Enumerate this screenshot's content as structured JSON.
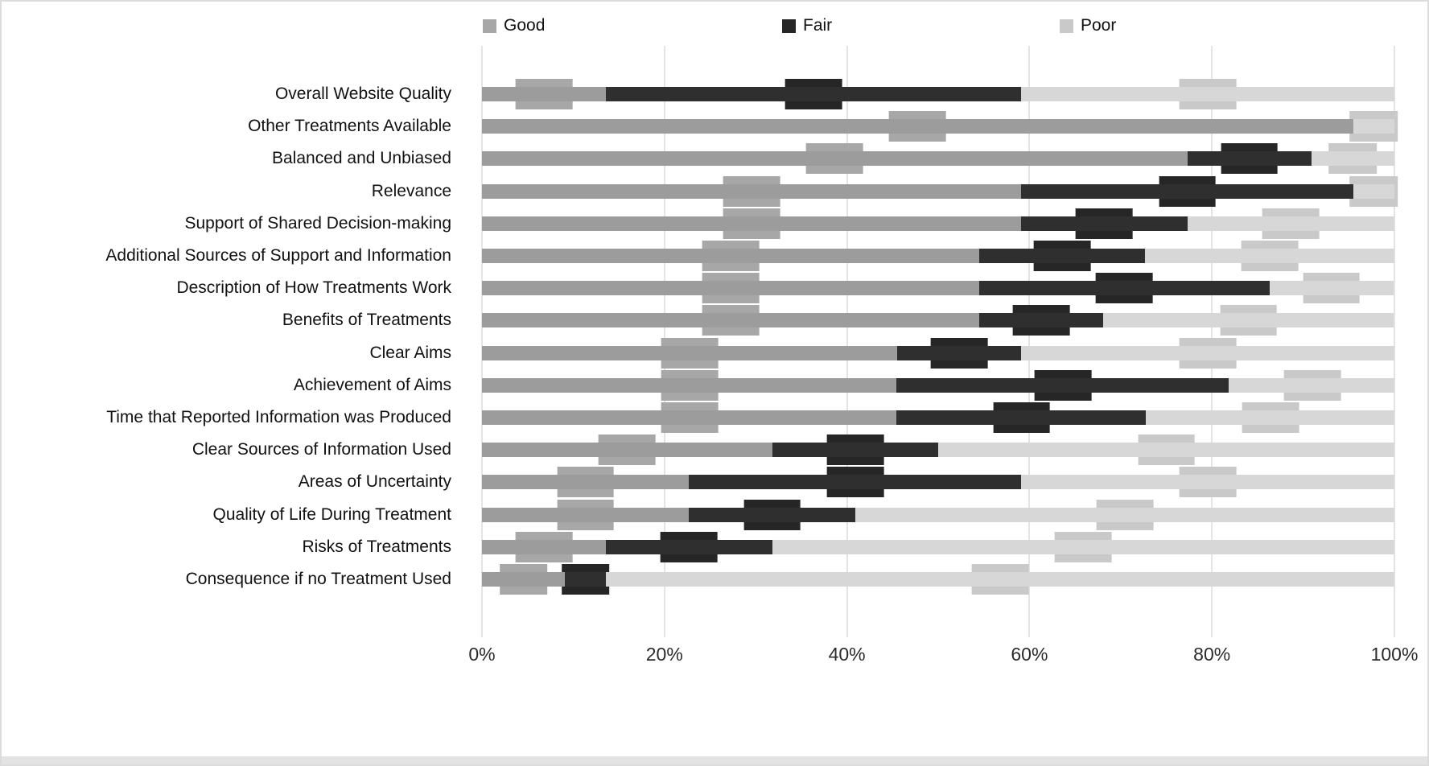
{
  "legend": {
    "items": [
      {
        "label": "Good",
        "color": "#a7a7a7"
      },
      {
        "label": "Fair",
        "color": "#262626"
      },
      {
        "label": "Poor",
        "color": "#c9c9c9"
      }
    ]
  },
  "chart_data": {
    "type": "bar",
    "orientation": "horizontal",
    "stacked": true,
    "unit": "%",
    "title": "",
    "xlabel": "",
    "ylabel": "",
    "xlim": [
      0,
      100
    ],
    "x_ticks": [
      "0%",
      "20%",
      "40%",
      "60%",
      "80%",
      "100%"
    ],
    "grid": "vertical",
    "legend_position": "top",
    "categories": [
      "Overall Website Quality",
      "Other Treatments Available",
      "Balanced and Unbiased",
      "Relevance",
      "Support of Shared Decision-making",
      "Additional Sources of Support and Information",
      "Description of How Treatments Work",
      "Benefits of Treatments",
      "Clear Aims",
      "Achievement of Aims",
      "Time that Reported Information was Produced",
      "Clear Sources of Information Used",
      "Areas of Uncertainty",
      "Quality of Life During Treatment",
      "Risks of Treatments",
      "Consequence if no Treatment Used"
    ],
    "series": [
      {
        "name": "Good",
        "bar_color": "#9c9c9c",
        "label_bg": "#a7a7a7",
        "label_text_color": "#111111",
        "values": [
          13.6,
          95.5,
          77.3,
          59.1,
          59.1,
          54.5,
          54.5,
          54.5,
          45.5,
          45.5,
          45.5,
          31.8,
          22.7,
          22.7,
          13.6,
          9.1
        ]
      },
      {
        "name": "Fair",
        "bar_color": "#2f2f2f",
        "label_bg": "#262626",
        "label_text_color": "#ffffff",
        "values": [
          45.5,
          0,
          13.6,
          36.4,
          18.2,
          18.2,
          31.8,
          13.6,
          13.6,
          36.4,
          27.3,
          18.2,
          36.4,
          18.2,
          18.2,
          4.5
        ]
      },
      {
        "name": "Poor",
        "bar_color": "#d7d7d7",
        "label_bg": "#c9c9c9",
        "label_text_color": "#111111",
        "values": [
          40.9,
          4.5,
          9.1,
          4.5,
          22.7,
          27.3,
          13.6,
          31.8,
          40.9,
          18.2,
          27.3,
          50.0,
          40.9,
          59.1,
          68.2,
          86.4
        ]
      }
    ]
  }
}
